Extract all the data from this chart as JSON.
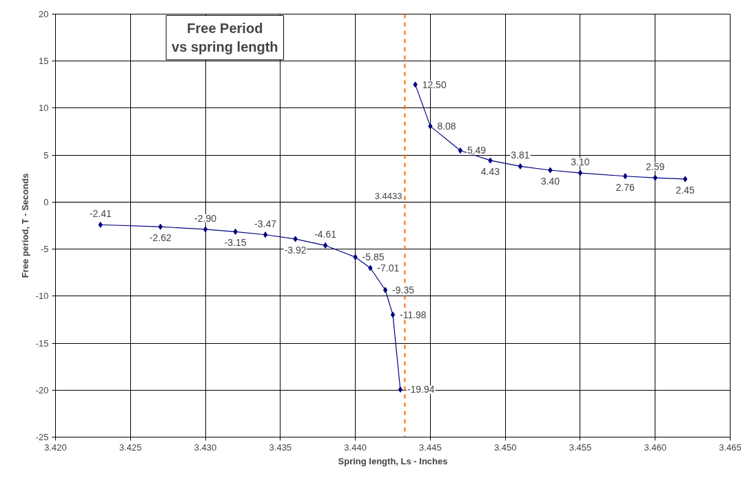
{
  "chart_data": {
    "type": "line",
    "title": "Free Period\nvs spring length",
    "xlabel": "Spring length, Ls - Inches",
    "ylabel": "Free period, T - Seconds",
    "xlim": [
      3.42,
      3.465
    ],
    "xticks": [
      {
        "value": 3.42,
        "label": "3.420"
      },
      {
        "value": 3.425,
        "label": "3.425"
      },
      {
        "value": 3.43,
        "label": "3.430"
      },
      {
        "value": 3.435,
        "label": "3.435"
      },
      {
        "value": 3.44,
        "label": "3.440"
      },
      {
        "value": 3.445,
        "label": "3.445"
      },
      {
        "value": 3.45,
        "label": "3.450"
      },
      {
        "value": 3.455,
        "label": "3.455"
      },
      {
        "value": 3.46,
        "label": "3.460"
      },
      {
        "value": 3.465,
        "label": "3.465"
      }
    ],
    "ylim": [
      -25,
      20
    ],
    "yticks": [
      -25,
      -20,
      -15,
      -10,
      -5,
      0,
      5,
      10,
      15,
      20
    ],
    "grid": true,
    "marker": "diamond",
    "line_style": "solid",
    "series": [
      {
        "color": "#000080",
        "x": [
          3.423,
          3.427,
          3.43,
          3.432,
          3.434,
          3.436,
          3.438,
          3.44,
          3.441,
          3.442,
          3.4425,
          3.443
        ],
        "values": [
          -2.41,
          -2.62,
          -2.9,
          -3.15,
          -3.47,
          -3.92,
          -4.61,
          -5.85,
          -7.01,
          -9.35,
          -11.98,
          -19.94
        ],
        "value_labels": [
          "-2.41",
          "-2.62",
          "-2.90",
          "-3.15",
          "-3.47",
          "-3.92",
          "-4.61",
          "-5.85",
          "-7.01",
          "-9.35",
          "-11.98",
          "-19.94"
        ]
      },
      {
        "color": "#000080",
        "x": [
          3.444,
          3.445,
          3.447,
          3.449,
          3.451,
          3.453,
          3.455,
          3.458,
          3.46,
          3.462
        ],
        "values": [
          12.5,
          8.08,
          5.49,
          4.43,
          3.81,
          3.4,
          3.1,
          2.76,
          2.59,
          2.45
        ],
        "value_labels": [
          "12.50",
          "8.08",
          "5.49",
          "4.43",
          "3.81",
          "3.40",
          "3.10",
          "2.76",
          "2.59",
          "2.45"
        ]
      }
    ],
    "ref_lines": [
      {
        "axis": "x",
        "value": 3.4433,
        "label": "3.4433",
        "color": "#ff6600",
        "line_style": "dashed"
      }
    ]
  }
}
